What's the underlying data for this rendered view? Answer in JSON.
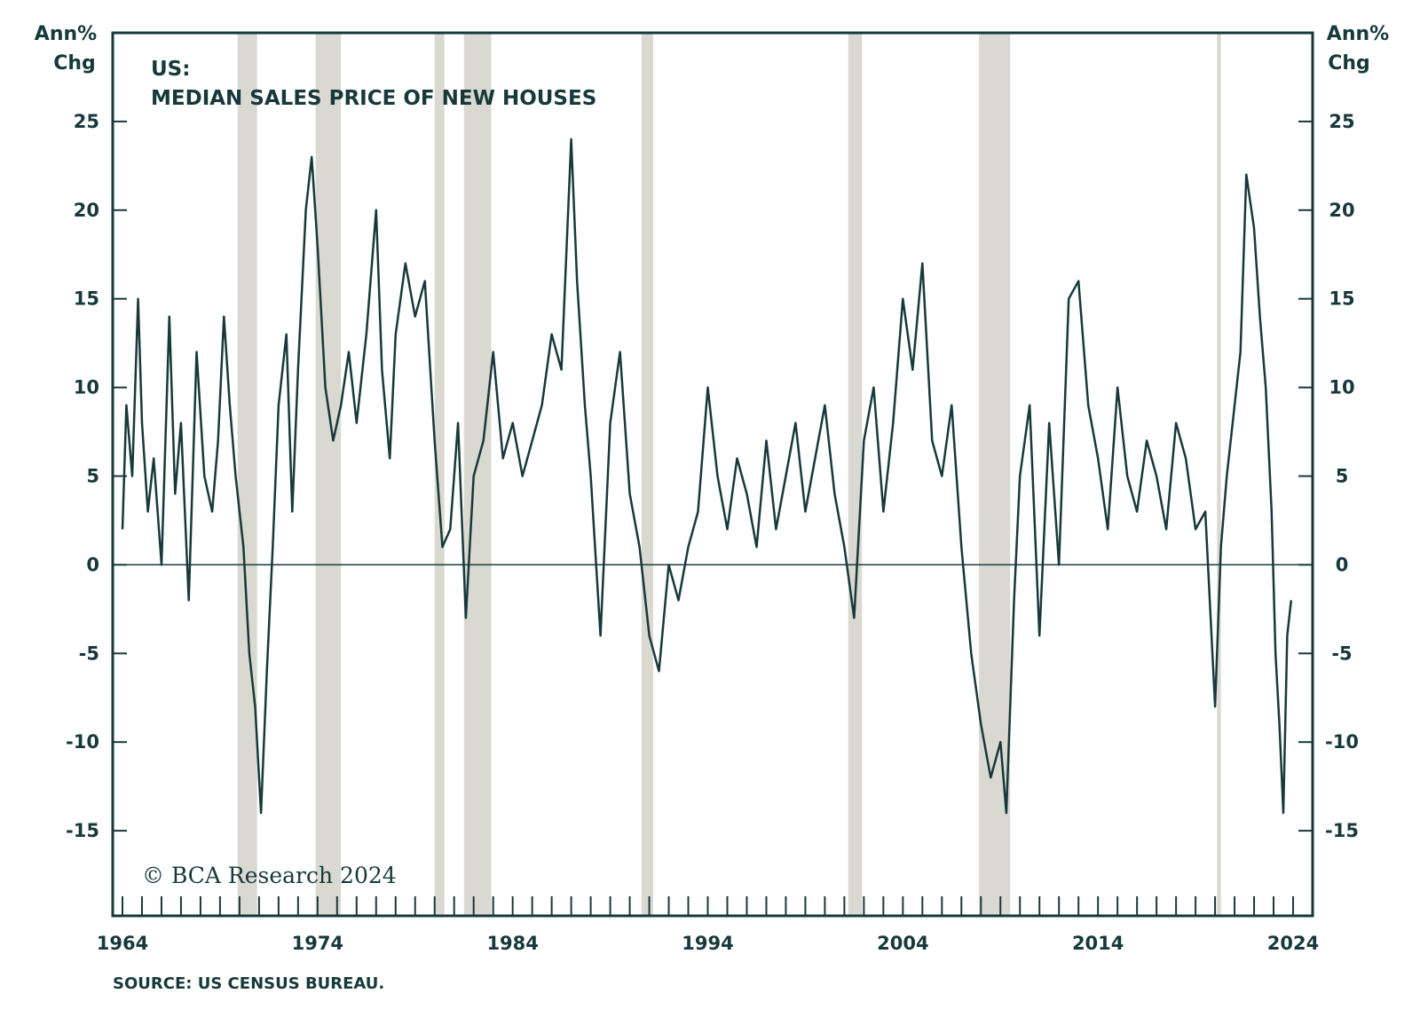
{
  "chart_data": {
    "type": "line",
    "title": "US:",
    "subtitle": "MEDIAN SALES PRICE OF NEW HOUSES",
    "left_axis_label": [
      "Ann%",
      "Chg"
    ],
    "right_axis_label": [
      "Ann%",
      "Chg"
    ],
    "source": "SOURCE: US CENSUS BUREAU.",
    "copyright": "© BCA Research 2024",
    "x_tick_labels": [
      "1964",
      "1974",
      "1984",
      "1994",
      "2004",
      "2014",
      "2024"
    ],
    "y_ticks": [
      25,
      20,
      15,
      10,
      5,
      0,
      -5,
      -10,
      -15
    ],
    "xlim": [
      1963.5,
      2025.0
    ],
    "ylim": [
      -19.8,
      30.0
    ],
    "grid": false,
    "legend": "none",
    "zero_line": true,
    "colors": {
      "line": "#17393b",
      "recession": "#d9d9d1",
      "frame": "#17393b"
    },
    "recessions": [
      [
        1969.9,
        1970.9
      ],
      [
        1973.9,
        1975.2
      ],
      [
        1980.0,
        1980.5
      ],
      [
        1981.5,
        1982.9
      ],
      [
        1990.6,
        1991.2
      ],
      [
        2001.2,
        2001.9
      ],
      [
        2007.9,
        2009.5
      ],
      [
        2020.1,
        2020.3
      ]
    ],
    "series": [
      {
        "x": [
          1964.0,
          1964.2,
          1964.5,
          1964.8,
          1965.0,
          1965.3,
          1965.6,
          1966.0,
          1966.4,
          1966.7,
          1967.0,
          1967.4,
          1967.8,
          1968.2,
          1968.6,
          1968.9,
          1969.2,
          1969.5,
          1969.8,
          1970.2,
          1970.5,
          1970.8,
          1971.1,
          1971.4,
          1971.7,
          1972.0,
          1972.4,
          1972.7,
          1973.0,
          1973.4,
          1973.7,
          1974.0,
          1974.4,
          1974.8,
          1975.2,
          1975.6,
          1976.0,
          1976.5,
          1977.0,
          1977.3,
          1977.7,
          1978.0,
          1978.5,
          1979.0,
          1979.5,
          1980.0,
          1980.4,
          1980.8,
          1981.2,
          1981.6,
          1982.0,
          1982.5,
          1983.0,
          1983.5,
          1984.0,
          1984.5,
          1985.0,
          1985.5,
          1986.0,
          1986.5,
          1987.0,
          1987.3,
          1987.7,
          1988.0,
          1988.5,
          1989.0,
          1989.5,
          1990.0,
          1990.5,
          1991.0,
          1991.5,
          1992.0,
          1992.5,
          1993.0,
          1993.5,
          1994.0,
          1994.5,
          1995.0,
          1995.5,
          1996.0,
          1996.5,
          1997.0,
          1997.5,
          1998.0,
          1998.5,
          1999.0,
          1999.5,
          2000.0,
          2000.5,
          2001.0,
          2001.5,
          2002.0,
          2002.5,
          2003.0,
          2003.5,
          2004.0,
          2004.5,
          2005.0,
          2005.5,
          2006.0,
          2006.5,
          2007.0,
          2007.5,
          2008.0,
          2008.5,
          2009.0,
          2009.3,
          2009.7,
          2010.0,
          2010.5,
          2011.0,
          2011.5,
          2012.0,
          2012.5,
          2013.0,
          2013.5,
          2014.0,
          2014.5,
          2015.0,
          2015.5,
          2016.0,
          2016.5,
          2017.0,
          2017.5,
          2018.0,
          2018.5,
          2019.0,
          2019.5,
          2020.0,
          2020.3,
          2020.6,
          2021.0,
          2021.3,
          2021.6,
          2022.0,
          2022.3,
          2022.6,
          2022.9,
          2023.1,
          2023.3,
          2023.5,
          2023.7,
          2023.9
        ],
        "values": [
          2,
          9,
          5,
          15,
          8,
          3,
          6,
          0,
          14,
          4,
          8,
          -2,
          12,
          5,
          3,
          7,
          14,
          9,
          5,
          1,
          -5,
          -8,
          -14,
          -6,
          1,
          9,
          13,
          3,
          11,
          20,
          23,
          18,
          10,
          7,
          9,
          12,
          8,
          13,
          20,
          11,
          6,
          13,
          17,
          14,
          16,
          7,
          1,
          2,
          8,
          -3,
          5,
          7,
          12,
          6,
          8,
          5,
          7,
          9,
          13,
          11,
          24,
          16,
          9,
          5,
          -4,
          8,
          12,
          4,
          1,
          -4,
          -6,
          0,
          -2,
          1,
          3,
          10,
          5,
          2,
          6,
          4,
          1,
          7,
          2,
          5,
          8,
          3,
          6,
          9,
          4,
          1,
          -3,
          7,
          10,
          3,
          8,
          15,
          11,
          17,
          7,
          5,
          9,
          1,
          -5,
          -9,
          -12,
          -10,
          -14,
          -2,
          5,
          9,
          -4,
          8,
          0,
          15,
          16,
          9,
          6,
          2,
          10,
          5,
          3,
          7,
          5,
          2,
          8,
          6,
          2,
          3,
          -8,
          1,
          5,
          9,
          12,
          22,
          19,
          14,
          10,
          3,
          -5,
          -9,
          -14,
          -4,
          -2
        ]
      }
    ]
  }
}
